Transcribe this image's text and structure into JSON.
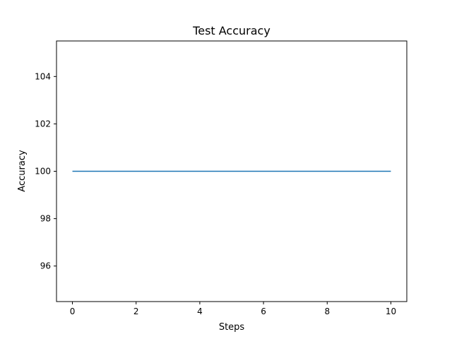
{
  "chart_data": {
    "type": "line",
    "title": "Test Accuracy",
    "xlabel": "Steps",
    "ylabel": "Accuracy",
    "xlim": [
      -0.5,
      10.5
    ],
    "ylim": [
      94.5,
      105.5
    ],
    "xticks": [
      "0",
      "2",
      "4",
      "6",
      "8",
      "10"
    ],
    "yticks": [
      "96",
      "98",
      "100",
      "102",
      "104"
    ],
    "grid": false,
    "legend": "none",
    "series": [
      {
        "color": "#1f77b4",
        "x": [
          0,
          1,
          2,
          3,
          4,
          5,
          6,
          7,
          8,
          9,
          10
        ],
        "values": [
          100,
          100,
          100,
          100,
          100,
          100,
          100,
          100,
          100,
          100,
          100
        ]
      }
    ]
  }
}
